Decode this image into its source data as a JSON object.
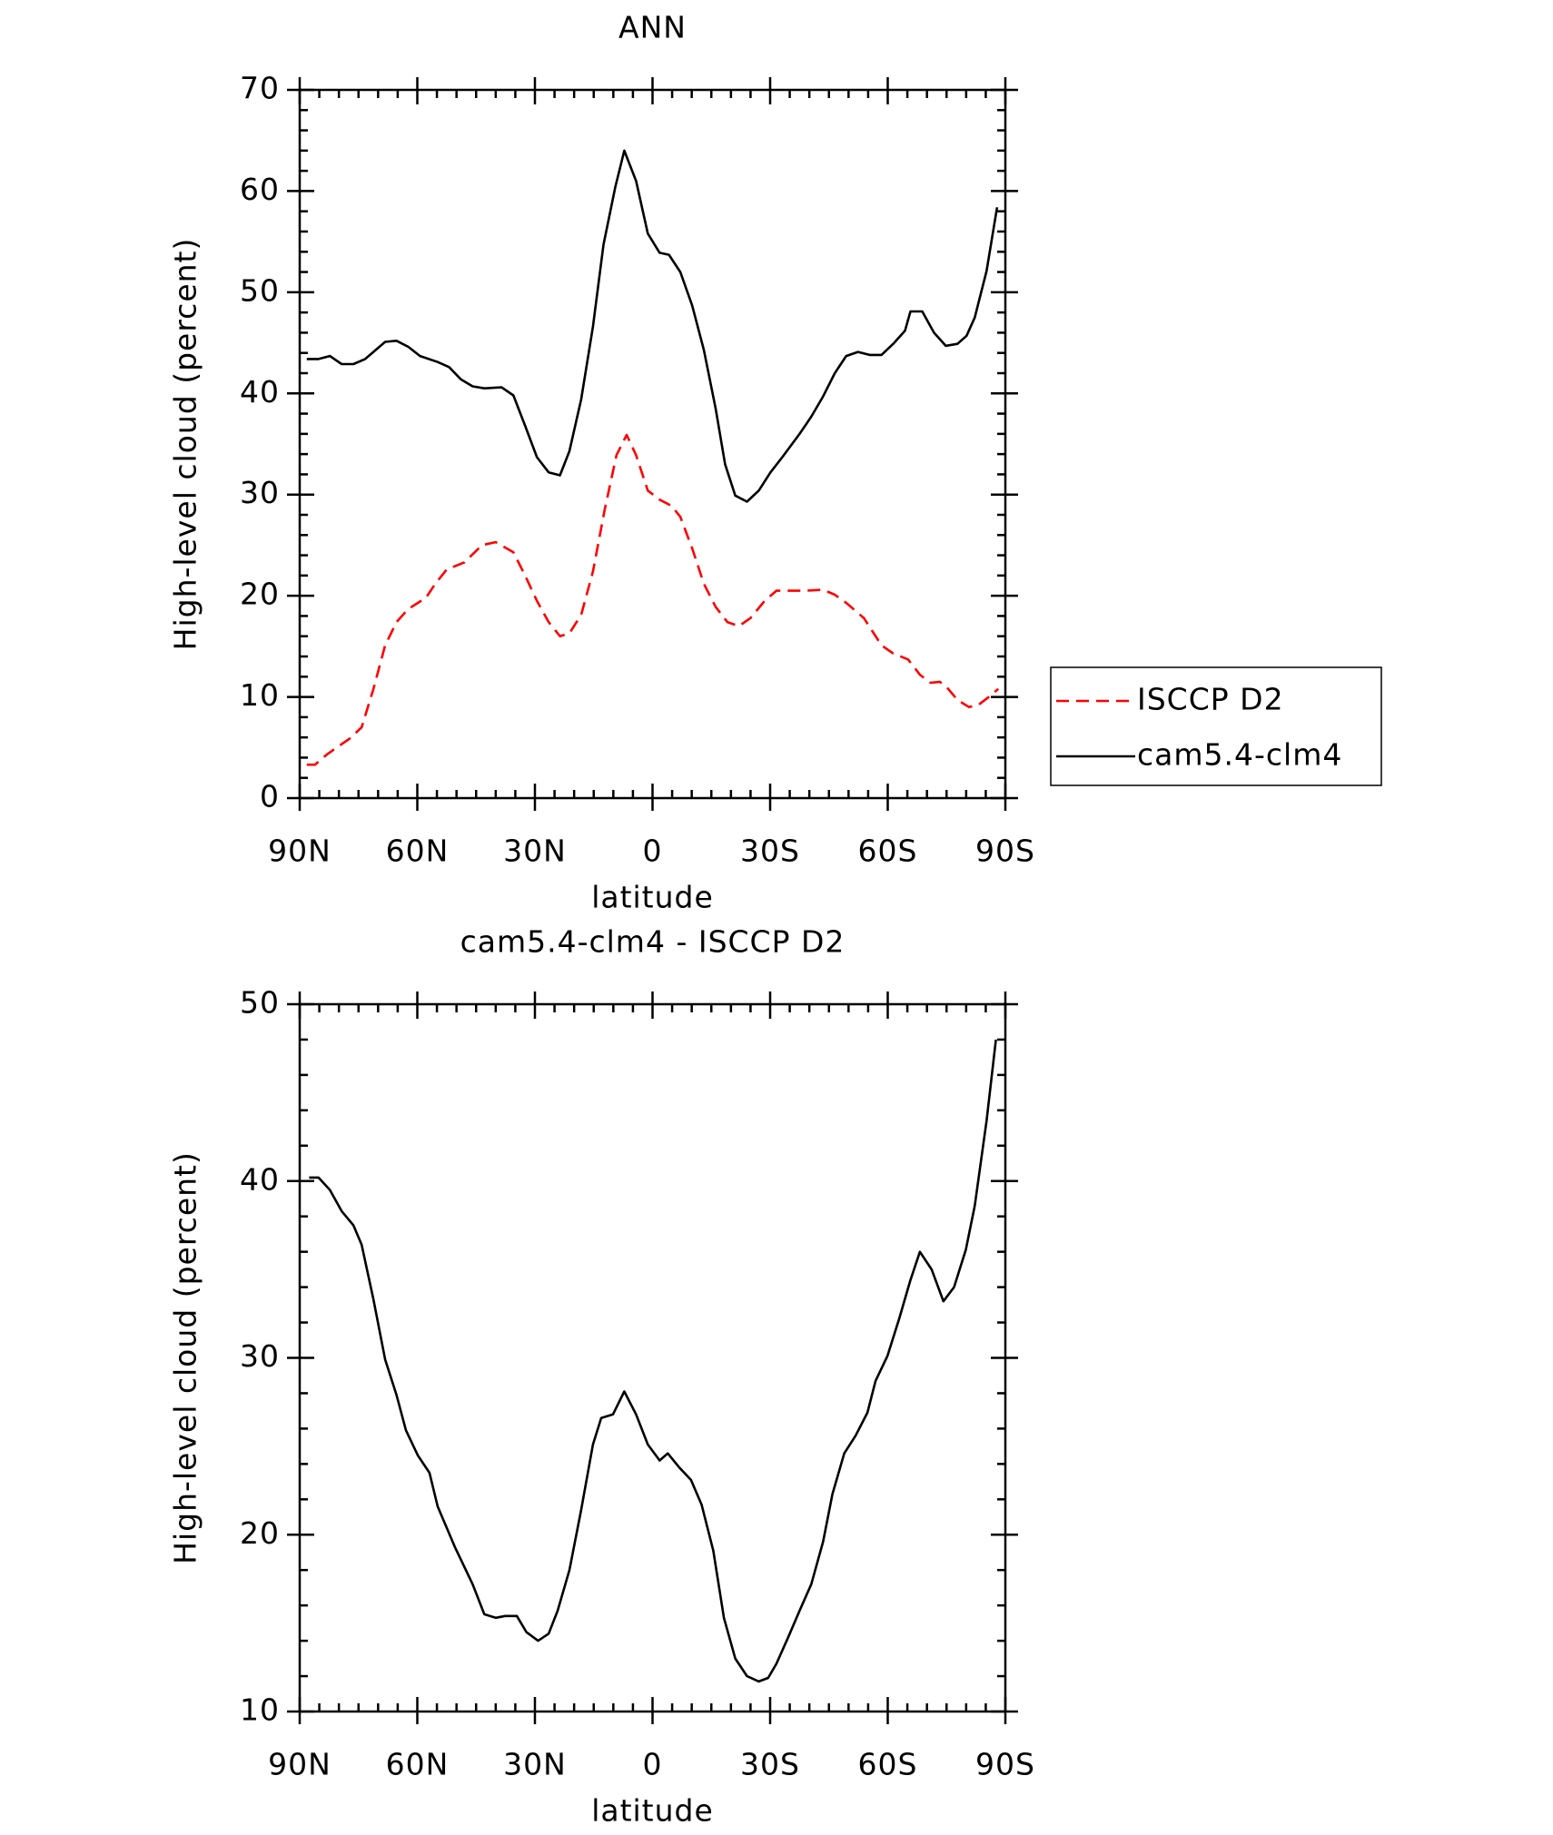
{
  "chart_data": [
    {
      "type": "line",
      "title": "ANN",
      "xlabel": "latitude",
      "ylabel": "High-level cloud (percent)",
      "xlim": [
        90,
        -90
      ],
      "ylim": [
        0,
        70
      ],
      "xticks": [
        {
          "value": 90,
          "label": "90N"
        },
        {
          "value": 60,
          "label": "60N"
        },
        {
          "value": 30,
          "label": "30N"
        },
        0,
        {
          "value": -30,
          "label": "30S"
        },
        {
          "value": -60,
          "label": "60S"
        },
        {
          "value": -90,
          "label": "90S"
        }
      ],
      "yticks": [
        0,
        10,
        20,
        30,
        40,
        50,
        60,
        70
      ],
      "legend": "outside-right",
      "series": [
        {
          "name": "ISCCP D2",
          "color": "#ff0000",
          "dash": true,
          "x": [
            88.2,
            86.1,
            83.1,
            80.2,
            77.2,
            74.2,
            71.2,
            68.2,
            65.3,
            62.3,
            57.8,
            55.4,
            52.5,
            48.0,
            43.5,
            40.0,
            35.5,
            32.5,
            29.5,
            26.5,
            23.6,
            21.2,
            18.2,
            15.2,
            12.2,
            9.2,
            6.6,
            4.2,
            1.2,
            -1.8,
            -4.8,
            -7.1,
            -10.1,
            -13.1,
            -16.1,
            -19.1,
            -22.0,
            -25.0,
            -28.6,
            -31.6,
            -36.0,
            -39.0,
            -43.5,
            -46.5,
            -49.4,
            -53.9,
            -58.4,
            -61.4,
            -65.2,
            -68.2,
            -70.9,
            -73.3,
            -75.4,
            -77.8,
            -80.7,
            -83.1,
            -86.1,
            -88.2
          ],
          "values": [
            3.3,
            3.3,
            4.3,
            5.1,
            5.9,
            7.0,
            10.8,
            15.1,
            17.4,
            18.7,
            19.8,
            21.2,
            22.6,
            23.3,
            25.0,
            25.3,
            24.3,
            22.0,
            19.5,
            17.4,
            16.0,
            16.3,
            18.1,
            22.4,
            28.5,
            33.9,
            35.9,
            33.9,
            30.4,
            29.5,
            28.9,
            27.8,
            24.7,
            21.2,
            18.9,
            17.4,
            17.0,
            17.8,
            19.5,
            20.5,
            20.5,
            20.5,
            20.6,
            20.1,
            19.3,
            17.8,
            15.1,
            14.3,
            13.7,
            12.2,
            11.4,
            11.5,
            10.8,
            9.7,
            9.0,
            9.2,
            10.1,
            10.8
          ]
        },
        {
          "name": "cam5.4-clm4",
          "color": "#000000",
          "dash": false,
          "x": [
            88.2,
            85.2,
            82.3,
            79.3,
            76.3,
            73.3,
            68.2,
            65.3,
            62.3,
            59.3,
            54.8,
            51.9,
            48.9,
            45.9,
            42.9,
            38.5,
            35.5,
            32.5,
            29.5,
            26.5,
            23.6,
            21.2,
            18.2,
            15.2,
            12.5,
            9.5,
            7.2,
            4.2,
            1.2,
            -1.8,
            -4.2,
            -7.1,
            -10.1,
            -13.1,
            -16.1,
            -18.5,
            -21.1,
            -24.1,
            -27.1,
            -30.1,
            -33.1,
            -37.5,
            -40.5,
            -43.5,
            -46.5,
            -49.4,
            -52.4,
            -55.4,
            -58.4,
            -61.4,
            -64.4,
            -65.8,
            -68.8,
            -71.8,
            -74.8,
            -77.8,
            -80.1,
            -82.2,
            -85.2,
            -87.9
          ],
          "values": [
            43.4,
            43.4,
            43.7,
            42.9,
            42.9,
            43.4,
            45.1,
            45.2,
            44.6,
            43.7,
            43.1,
            42.6,
            41.4,
            40.7,
            40.5,
            40.6,
            39.8,
            36.8,
            33.7,
            32.2,
            31.9,
            34.3,
            39.4,
            46.6,
            54.7,
            60.4,
            64.0,
            61.0,
            55.8,
            53.9,
            53.7,
            52.0,
            48.7,
            44.3,
            38.5,
            33.0,
            29.9,
            29.3,
            30.4,
            32.2,
            33.7,
            36.0,
            37.7,
            39.7,
            42.0,
            43.7,
            44.1,
            43.8,
            43.8,
            44.9,
            46.2,
            48.1,
            48.1,
            46.0,
            44.7,
            44.9,
            45.7,
            47.5,
            52.1,
            58.4
          ]
        }
      ]
    },
    {
      "type": "line",
      "title": "cam5.4-clm4 - ISCCP D2",
      "xlabel": "latitude",
      "ylabel": "High-level cloud (percent)",
      "xlim": [
        90,
        -90
      ],
      "ylim": [
        10,
        50
      ],
      "xticks": [
        {
          "value": 90,
          "label": "90N"
        },
        {
          "value": 60,
          "label": "60N"
        },
        {
          "value": 30,
          "label": "30N"
        },
        0,
        {
          "value": -30,
          "label": "30S"
        },
        {
          "value": -60,
          "label": "60S"
        },
        {
          "value": -90,
          "label": "90S"
        }
      ],
      "yticks": [
        10,
        20,
        30,
        40,
        50
      ],
      "series": [
        {
          "color": "#000000",
          "dash": false,
          "x": [
            87.6,
            85.2,
            82.3,
            79.3,
            76.3,
            74.2,
            71.2,
            68.2,
            65.3,
            62.9,
            59.9,
            56.9,
            54.8,
            50.4,
            45.9,
            42.9,
            40.0,
            37.6,
            34.6,
            32.2,
            29.2,
            26.5,
            24.2,
            21.2,
            18.2,
            15.2,
            13.1,
            10.1,
            7.2,
            4.2,
            1.2,
            -1.8,
            -3.9,
            -6.8,
            -9.8,
            -12.5,
            -15.5,
            -18.2,
            -21.1,
            -24.1,
            -27.1,
            -29.5,
            -31.6,
            -34.6,
            -37.5,
            -40.5,
            -43.5,
            -45.9,
            -48.9,
            -51.8,
            -54.8,
            -56.9,
            -59.9,
            -62.9,
            -65.8,
            -68.2,
            -71.2,
            -74.2,
            -76.9,
            -79.9,
            -82.2,
            -85.2,
            -87.6
          ],
          "values": [
            40.2,
            40.2,
            39.5,
            38.3,
            37.5,
            36.4,
            33.3,
            29.9,
            27.9,
            25.9,
            24.5,
            23.5,
            21.6,
            19.3,
            17.2,
            15.5,
            15.3,
            15.4,
            15.4,
            14.5,
            14.0,
            14.4,
            15.7,
            18.0,
            21.4,
            25.1,
            26.6,
            26.8,
            28.1,
            26.8,
            25.1,
            24.2,
            24.6,
            23.8,
            23.1,
            21.7,
            19.1,
            15.3,
            13.0,
            12.0,
            11.7,
            11.9,
            12.7,
            14.2,
            15.7,
            17.2,
            19.6,
            22.3,
            24.6,
            25.6,
            26.9,
            28.7,
            30.1,
            32.2,
            34.4,
            36.0,
            35.0,
            33.2,
            34.0,
            36.1,
            38.6,
            43.4,
            48.0
          ]
        }
      ]
    }
  ]
}
